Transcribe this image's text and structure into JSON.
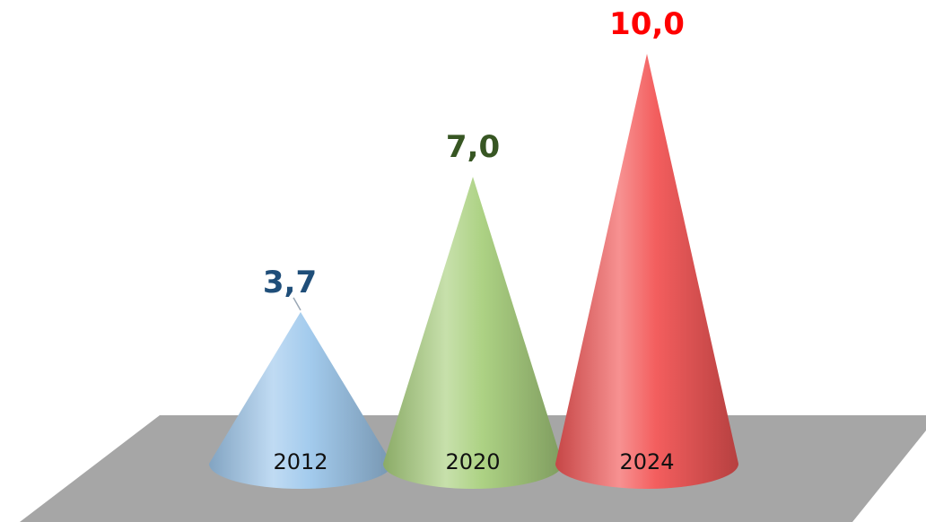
{
  "chart_data": {
    "type": "bar",
    "shape": "cone",
    "categories": [
      "2012",
      "2020",
      "2024"
    ],
    "values": [
      3.7,
      7.0,
      10.0
    ],
    "value_labels": [
      "3,7",
      "7,0",
      "10,0"
    ],
    "colors": [
      "#9ec8ec",
      "#a9d07e",
      "#f25555"
    ],
    "label_colors": [
      "#1f4e79",
      "#375623",
      "#ff0000"
    ],
    "floor_color": "#a6a6a6",
    "grid": false,
    "legend": "none",
    "ylim": [
      0,
      10.0
    ]
  }
}
